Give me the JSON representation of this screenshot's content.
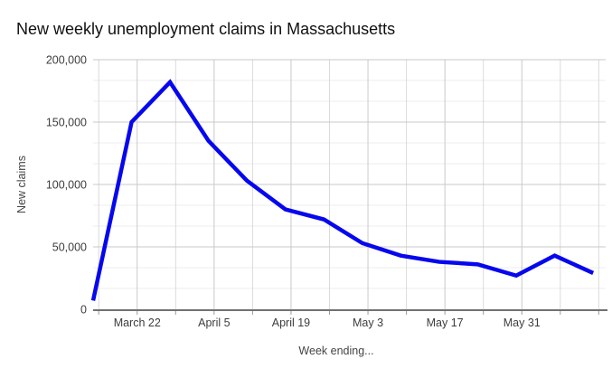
{
  "title": "New weekly unemployment claims in Massachusetts",
  "colors": {
    "line": "#0707ee",
    "grid_major": "#c9c9c9",
    "grid_minor": "#ececec",
    "grid_vertical_labeled": "#c9c9c9",
    "grid_vertical_unlabeled": "#dadada",
    "axis_line": "#424242",
    "tick_mark": "#9a9a9a",
    "text": "#3d3d3d"
  },
  "chart_data": {
    "type": "line",
    "title": "New weekly unemployment claims in Massachusetts",
    "xlabel": "Week ending...",
    "ylabel": "New claims",
    "categories": [
      "",
      "March 22",
      "",
      "April 5",
      "",
      "April 19",
      "",
      "May 3",
      "",
      "May 17",
      "",
      "May 31",
      "",
      ""
    ],
    "values": [
      7000,
      150000,
      182000,
      135000,
      103000,
      80000,
      72000,
      53000,
      43000,
      38000,
      36000,
      27000,
      43000,
      29000
    ],
    "series_name": "New claims",
    "ylim": [
      0,
      200000
    ],
    "y_ticks": [
      0,
      50000,
      100000,
      150000,
      200000
    ],
    "y_tick_labels": [
      "0",
      "50,000",
      "100,000",
      "150,000",
      "200,000"
    ],
    "y_minor_divisions_per_major": 3,
    "grid": "major and minor gridlines, horizontal and vertical (weekly)",
    "legend": "none",
    "line_width": 4.5
  }
}
